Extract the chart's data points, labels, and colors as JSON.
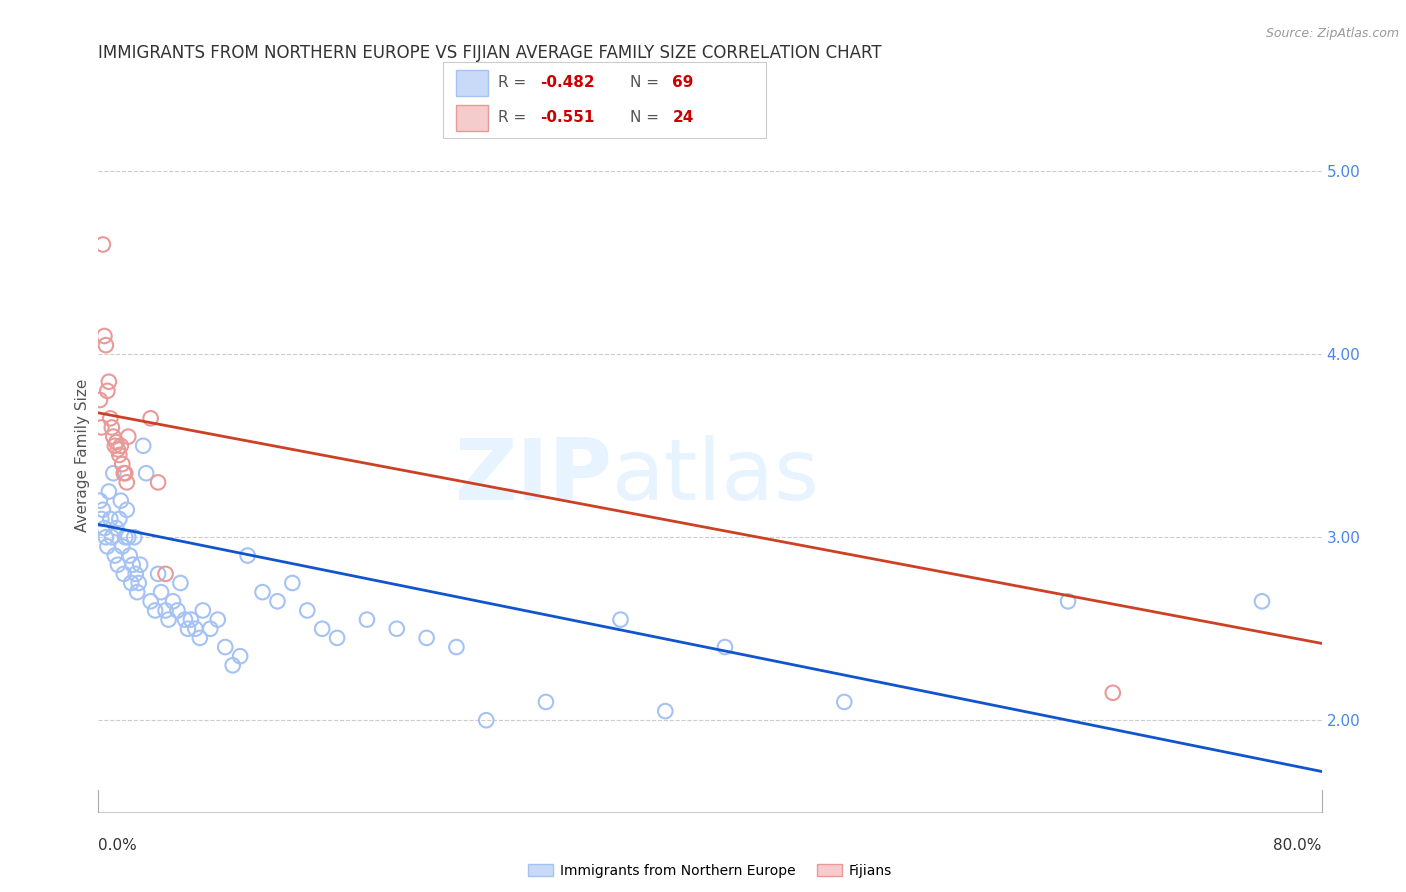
{
  "title": "IMMIGRANTS FROM NORTHERN EUROPE VS FIJIAN AVERAGE FAMILY SIZE CORRELATION CHART",
  "source": "Source: ZipAtlas.com",
  "ylabel": "Average Family Size",
  "legend_blue_R": "R = ",
  "legend_blue_R_val": "-0.482",
  "legend_blue_N": "N = ",
  "legend_blue_N_val": "69",
  "legend_pink_R": "R = ",
  "legend_pink_R_val": "-0.551",
  "legend_pink_N": "N = ",
  "legend_pink_N_val": "24",
  "legend_label_blue": "Immigrants from Northern Europe",
  "legend_label_pink": "Fijians",
  "blue_color": "#a4c2f4",
  "pink_color": "#ea9999",
  "blue_face_color": "#c9daf8",
  "pink_face_color": "#f4cccc",
  "line_blue_color": "#1155cc",
  "line_pink_color": "#cc4125",
  "ytick_color": "#4a86e8",
  "ytick_labels": [
    "5.00",
    "4.00",
    "3.00",
    "2.00"
  ],
  "ytick_values": [
    5.0,
    4.0,
    3.0,
    2.0
  ],
  "ylim": [
    1.5,
    5.4
  ],
  "xlim": [
    0.0,
    0.82
  ],
  "blue_points": [
    [
      0.001,
      3.2
    ],
    [
      0.002,
      3.1
    ],
    [
      0.003,
      3.15
    ],
    [
      0.004,
      3.05
    ],
    [
      0.005,
      3.0
    ],
    [
      0.006,
      2.95
    ],
    [
      0.007,
      3.25
    ],
    [
      0.008,
      3.1
    ],
    [
      0.009,
      3.0
    ],
    [
      0.01,
      3.35
    ],
    [
      0.011,
      2.9
    ],
    [
      0.012,
      3.05
    ],
    [
      0.013,
      2.85
    ],
    [
      0.014,
      3.1
    ],
    [
      0.015,
      3.2
    ],
    [
      0.016,
      2.95
    ],
    [
      0.017,
      2.8
    ],
    [
      0.018,
      3.0
    ],
    [
      0.019,
      3.15
    ],
    [
      0.02,
      3.0
    ],
    [
      0.021,
      2.9
    ],
    [
      0.022,
      2.75
    ],
    [
      0.023,
      2.85
    ],
    [
      0.024,
      3.0
    ],
    [
      0.025,
      2.8
    ],
    [
      0.026,
      2.7
    ],
    [
      0.027,
      2.75
    ],
    [
      0.028,
      2.85
    ],
    [
      0.03,
      3.5
    ],
    [
      0.032,
      3.35
    ],
    [
      0.035,
      2.65
    ],
    [
      0.038,
      2.6
    ],
    [
      0.04,
      2.8
    ],
    [
      0.042,
      2.7
    ],
    [
      0.045,
      2.6
    ],
    [
      0.047,
      2.55
    ],
    [
      0.05,
      2.65
    ],
    [
      0.053,
      2.6
    ],
    [
      0.055,
      2.75
    ],
    [
      0.058,
      2.55
    ],
    [
      0.06,
      2.5
    ],
    [
      0.062,
      2.55
    ],
    [
      0.065,
      2.5
    ],
    [
      0.068,
      2.45
    ],
    [
      0.07,
      2.6
    ],
    [
      0.075,
      2.5
    ],
    [
      0.08,
      2.55
    ],
    [
      0.085,
      2.4
    ],
    [
      0.09,
      2.3
    ],
    [
      0.095,
      2.35
    ],
    [
      0.1,
      2.9
    ],
    [
      0.11,
      2.7
    ],
    [
      0.12,
      2.65
    ],
    [
      0.13,
      2.75
    ],
    [
      0.14,
      2.6
    ],
    [
      0.15,
      2.5
    ],
    [
      0.16,
      2.45
    ],
    [
      0.18,
      2.55
    ],
    [
      0.2,
      2.5
    ],
    [
      0.22,
      2.45
    ],
    [
      0.24,
      2.4
    ],
    [
      0.26,
      2.0
    ],
    [
      0.3,
      2.1
    ],
    [
      0.35,
      2.55
    ],
    [
      0.38,
      2.05
    ],
    [
      0.42,
      2.4
    ],
    [
      0.5,
      2.1
    ],
    [
      0.65,
      2.65
    ],
    [
      0.78,
      2.65
    ]
  ],
  "pink_points": [
    [
      0.001,
      3.75
    ],
    [
      0.002,
      3.6
    ],
    [
      0.003,
      4.6
    ],
    [
      0.004,
      4.1
    ],
    [
      0.005,
      4.05
    ],
    [
      0.006,
      3.8
    ],
    [
      0.007,
      3.85
    ],
    [
      0.008,
      3.65
    ],
    [
      0.009,
      3.6
    ],
    [
      0.01,
      3.55
    ],
    [
      0.011,
      3.5
    ],
    [
      0.012,
      3.52
    ],
    [
      0.013,
      3.48
    ],
    [
      0.014,
      3.45
    ],
    [
      0.015,
      3.5
    ],
    [
      0.016,
      3.4
    ],
    [
      0.017,
      3.35
    ],
    [
      0.018,
      3.35
    ],
    [
      0.019,
      3.3
    ],
    [
      0.02,
      3.55
    ],
    [
      0.035,
      3.65
    ],
    [
      0.04,
      3.3
    ],
    [
      0.045,
      2.8
    ],
    [
      0.68,
      2.15
    ]
  ],
  "blue_line_x": [
    0.0,
    0.82
  ],
  "blue_line_y": [
    3.07,
    1.72
  ],
  "pink_line_x": [
    0.0,
    0.82
  ],
  "pink_line_y": [
    3.68,
    2.42
  ],
  "watermark_zip": "ZIP",
  "watermark_atlas": "atlas",
  "title_fontsize": 12,
  "axis_label_fontsize": 11,
  "tick_fontsize": 11,
  "source_fontsize": 9
}
